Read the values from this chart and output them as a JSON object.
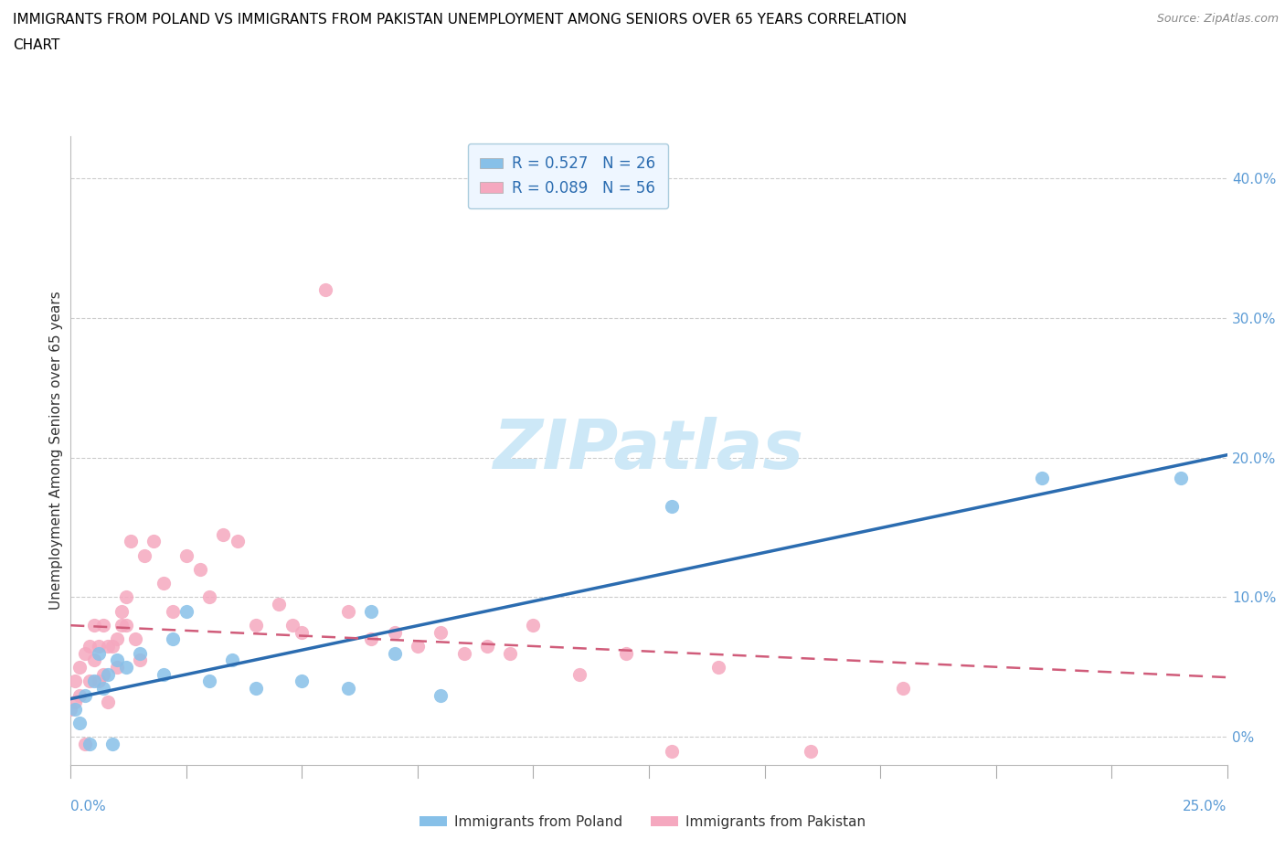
{
  "title": "IMMIGRANTS FROM POLAND VS IMMIGRANTS FROM PAKISTAN UNEMPLOYMENT AMONG SENIORS OVER 65 YEARS CORRELATION\nCHART",
  "source": "Source: ZipAtlas.com",
  "ylabel": "Unemployment Among Seniors over 65 years",
  "right_ytick_vals": [
    0.0,
    0.1,
    0.2,
    0.3,
    0.4
  ],
  "right_ytick_labels": [
    "0%",
    "10.0%",
    "20.0%",
    "30.0%",
    "40.0%"
  ],
  "xlim": [
    0.0,
    0.25
  ],
  "ylim": [
    -0.02,
    0.43
  ],
  "poland_R": 0.527,
  "poland_N": 26,
  "pakistan_R": 0.089,
  "pakistan_N": 56,
  "poland_color": "#87c0e8",
  "pakistan_color": "#f5a8bf",
  "poland_line_color": "#2b6cb0",
  "pakistan_line_color": "#d05c7a",
  "watermark_color": "#cde8f7",
  "poland_x": [
    0.001,
    0.002,
    0.003,
    0.004,
    0.005,
    0.006,
    0.007,
    0.008,
    0.009,
    0.01,
    0.012,
    0.015,
    0.02,
    0.022,
    0.025,
    0.03,
    0.035,
    0.04,
    0.05,
    0.06,
    0.065,
    0.07,
    0.08,
    0.13,
    0.21,
    0.24
  ],
  "poland_y": [
    0.02,
    0.01,
    0.03,
    -0.005,
    0.04,
    0.06,
    0.035,
    0.045,
    -0.005,
    0.055,
    0.05,
    0.06,
    0.045,
    0.07,
    0.09,
    0.04,
    0.055,
    0.035,
    0.04,
    0.035,
    0.09,
    0.06,
    0.03,
    0.165,
    0.185,
    0.185
  ],
  "pakistan_x": [
    0.0,
    0.001,
    0.001,
    0.002,
    0.002,
    0.003,
    0.003,
    0.004,
    0.004,
    0.005,
    0.005,
    0.006,
    0.006,
    0.007,
    0.007,
    0.008,
    0.008,
    0.009,
    0.01,
    0.01,
    0.011,
    0.011,
    0.012,
    0.012,
    0.013,
    0.014,
    0.015,
    0.016,
    0.018,
    0.02,
    0.022,
    0.025,
    0.028,
    0.03,
    0.033,
    0.036,
    0.04,
    0.045,
    0.048,
    0.05,
    0.055,
    0.06,
    0.065,
    0.07,
    0.075,
    0.08,
    0.085,
    0.09,
    0.095,
    0.1,
    0.11,
    0.12,
    0.13,
    0.14,
    0.16,
    0.18
  ],
  "pakistan_y": [
    0.02,
    0.04,
    0.025,
    0.05,
    0.03,
    0.06,
    -0.005,
    0.065,
    0.04,
    0.055,
    0.08,
    0.04,
    0.065,
    0.08,
    0.045,
    0.065,
    0.025,
    0.065,
    0.07,
    0.05,
    0.09,
    0.08,
    0.1,
    0.08,
    0.14,
    0.07,
    0.055,
    0.13,
    0.14,
    0.11,
    0.09,
    0.13,
    0.12,
    0.1,
    0.145,
    0.14,
    0.08,
    0.095,
    0.08,
    0.075,
    0.32,
    0.09,
    0.07,
    0.075,
    0.065,
    0.075,
    0.06,
    0.065,
    0.06,
    0.08,
    0.045,
    0.06,
    -0.01,
    0.05,
    -0.01,
    0.035
  ]
}
